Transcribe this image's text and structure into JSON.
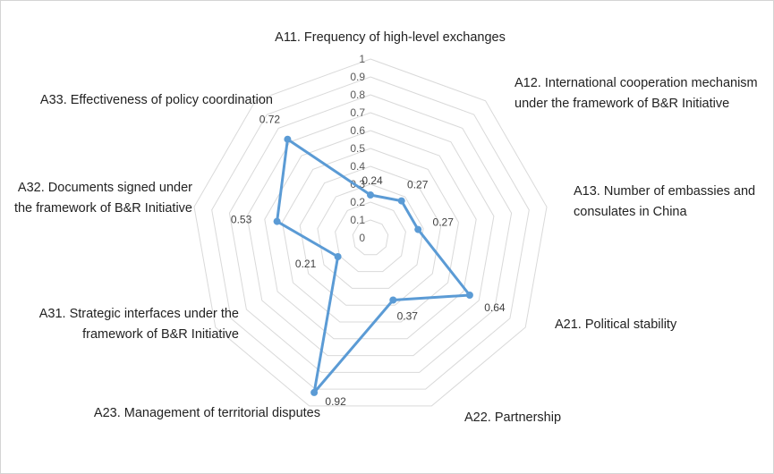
{
  "chart_data": {
    "type": "radar",
    "categories": [
      "A11. Frequency of high-level exchanges",
      "A12. International cooperation mechanism under the framework of B&R Initiative",
      "A13. Number of embassies and consulates in China",
      "A21. Political stability",
      "A22. Partnership",
      "A23. Management of territorial disputes",
      "A31. Strategic interfaces under the framework of B&R Initiative",
      "A32. Documents signed under the framework of B&R Initiative",
      "A33. Effectiveness of policy coordination"
    ],
    "label_lines": [
      [
        "A11. Frequency of high-level exchanges"
      ],
      [
        "A12. International cooperation mechanism",
        "under the framework of B&R Initiative"
      ],
      [
        "A13. Number of embassies and",
        "consulates in China"
      ],
      [
        "A21. Political stability"
      ],
      [
        "A22. Partnership"
      ],
      [
        "A23. Management of territorial disputes"
      ],
      [
        "A31. Strategic interfaces under the",
        "framework of B&R Initiative"
      ],
      [
        "A32. Documents signed under",
        "the framework of B&R Initiative"
      ],
      [
        "A33. Effectiveness of policy coordination"
      ]
    ],
    "values": [
      0.24,
      0.27,
      0.27,
      0.64,
      0.37,
      0.92,
      0.21,
      0.53,
      0.72
    ],
    "data_labels": [
      "0.24",
      "0.27",
      "0.27",
      "0.64",
      "0.37",
      "0.92",
      "0.21",
      "0.53",
      "0.72"
    ],
    "rlim": [
      0,
      1
    ],
    "ticks": [
      0,
      0.1,
      0.2,
      0.3,
      0.4,
      0.5,
      0.6,
      0.7,
      0.8,
      0.9,
      1
    ],
    "tick_labels": [
      "0",
      "0.1",
      "0.2",
      "0.3",
      "0.4",
      "0.5",
      "0.6",
      "0.7",
      "0.8",
      "0.9",
      "1"
    ],
    "grid": true,
    "legend": "none",
    "series_color": "#5b9bd5",
    "grid_color": "#d9d9d9"
  }
}
